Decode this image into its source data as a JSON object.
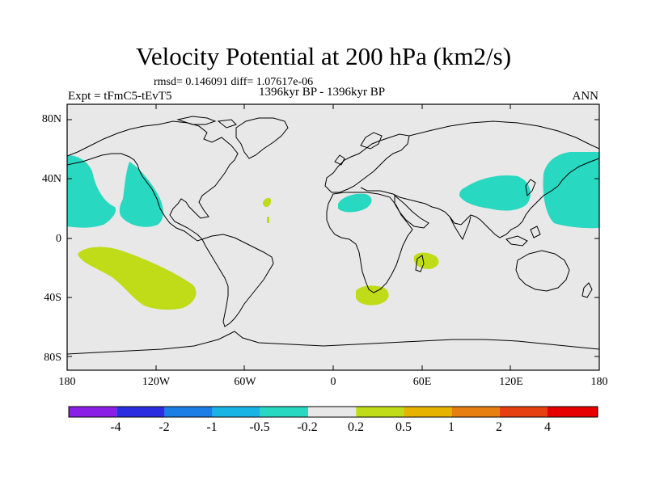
{
  "title": "Velocity Potential at 200 hPa (km2/s)",
  "stats_line": "rmsd= 0.146091 diff= 1.07617e-06",
  "period": "1396kyr BP - 1396kyr BP",
  "experiment": "Expt = tFmC5-tEvT5",
  "season": "ANN",
  "map": {
    "projection": "cylindrical equidistant",
    "lon_range": [
      -180,
      180
    ],
    "lat_range": [
      -90,
      90
    ],
    "y_ticks": [
      "80N",
      "40N",
      "0",
      "40S",
      "80S"
    ],
    "x_ticks": [
      "180",
      "120W",
      "60W",
      "0",
      "60E",
      "120E",
      "180"
    ],
    "background_color": "#e8e8e8",
    "coastline_color": "#000000"
  },
  "anomaly_regions": [
    {
      "name": "north-pacific-east-negative",
      "class": "-0.5 to -0.2",
      "color": "#28d8c0"
    },
    {
      "name": "north-pacific-west-negative",
      "class": "-0.5 to -0.2",
      "color": "#28d8c0"
    },
    {
      "name": "east-asia-negative",
      "class": "-0.5 to -0.2",
      "color": "#28d8c0"
    },
    {
      "name": "north-africa-negative",
      "class": "-0.5 to -0.2",
      "color": "#28d8c0"
    },
    {
      "name": "south-pacific-positive",
      "class": "0.2 to 0.5",
      "color": "#c0dc18"
    },
    {
      "name": "south-africa-positive",
      "class": "0.2 to 0.5",
      "color": "#c0dc18"
    },
    {
      "name": "madagascar-positive",
      "class": "0.2 to 0.5",
      "color": "#c0dc18"
    },
    {
      "name": "atlantic-positive",
      "class": "0.2 to 0.5",
      "color": "#c0dc18"
    }
  ],
  "colorbar": {
    "labels": [
      "-4",
      "-2",
      "-1",
      "-0.5",
      "-0.2",
      "0.2",
      "0.5",
      "1",
      "2",
      "4"
    ],
    "colors": [
      "#8a1ee6",
      "#2a2ee0",
      "#1a7ee6",
      "#18b4e6",
      "#28d8c0",
      "#e8e8e8",
      "#c0dc18",
      "#e6b400",
      "#e67e10",
      "#e64010",
      "#e60000"
    ]
  }
}
